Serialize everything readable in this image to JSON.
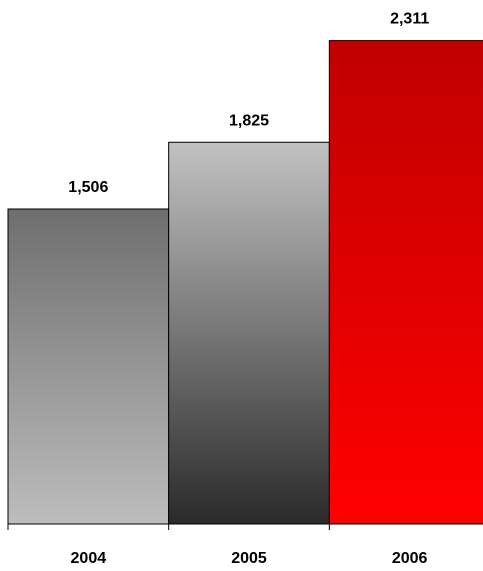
{
  "chart_data": {
    "type": "bar",
    "categories": [
      "2004",
      "2005",
      "2006"
    ],
    "values": [
      1506,
      1825,
      2311
    ],
    "value_labels": [
      "1,506",
      "1,825",
      "2,311"
    ],
    "title": "",
    "xlabel": "",
    "ylabel": "",
    "ylim": [
      0,
      2400
    ],
    "grid": false,
    "legend": "none",
    "bar_gradients": [
      [
        "#6e6e6e",
        "#bdbdbd"
      ],
      [
        "#c2c2c2",
        "#2a2a2a"
      ],
      [
        "#c00000",
        "#ff0000"
      ]
    ]
  }
}
